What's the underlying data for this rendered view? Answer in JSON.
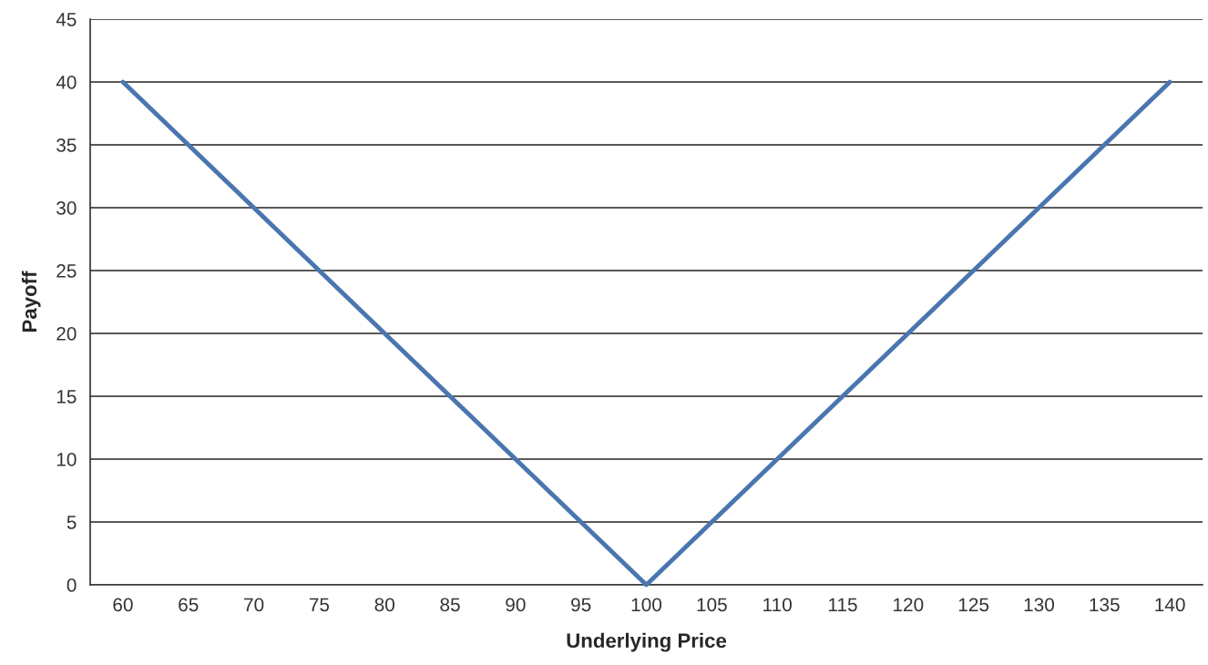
{
  "chart_data": {
    "type": "line",
    "xlabel": "Underlying Price",
    "ylabel": "Payoff",
    "categories": [
      "60",
      "65",
      "70",
      "75",
      "80",
      "85",
      "90",
      "95",
      "100",
      "105",
      "110",
      "115",
      "120",
      "125",
      "130",
      "135",
      "140"
    ],
    "series": [
      {
        "color": "#4a76b0",
        "values": [
          40,
          35,
          30,
          25,
          20,
          15,
          10,
          5,
          0,
          5,
          10,
          15,
          20,
          25,
          30,
          35,
          40
        ]
      }
    ],
    "ylim": [
      0,
      45
    ],
    "yticks": [
      0,
      5,
      10,
      15,
      20,
      25,
      30,
      35,
      40,
      45
    ],
    "grid": "y",
    "legend": false,
    "marker": "none",
    "line_style": "solid"
  }
}
